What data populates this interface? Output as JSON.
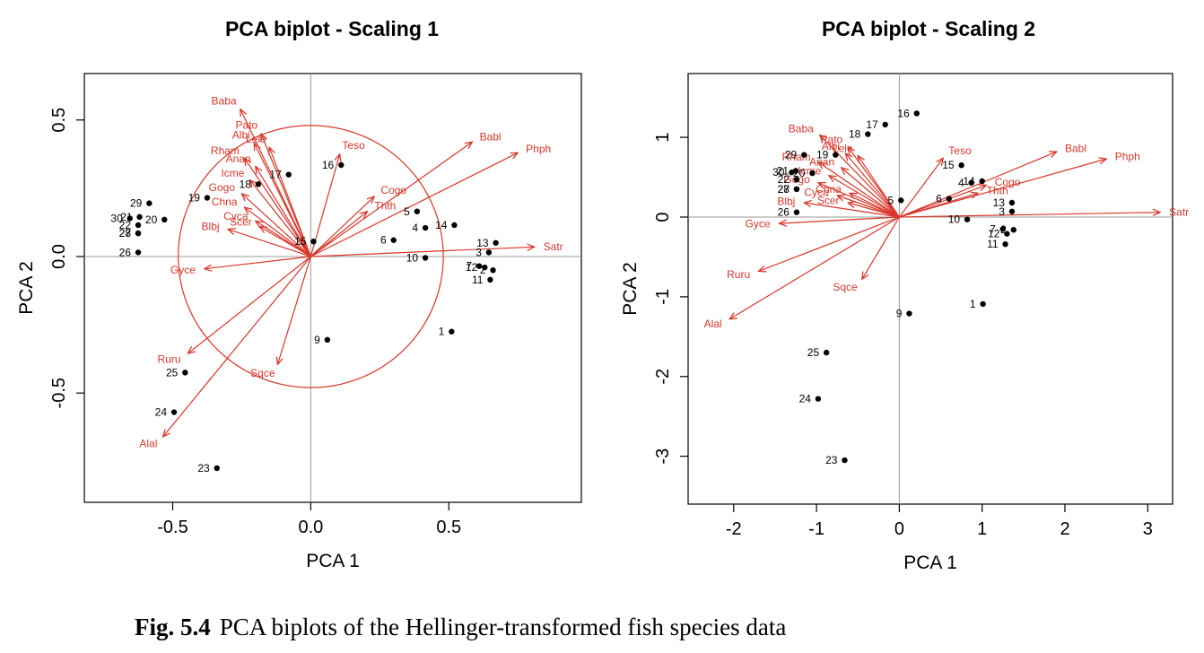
{
  "caption": {
    "label": "Fig. 5.4",
    "text": "PCA biplots of the Hellinger-transformed fish species data"
  },
  "colors": {
    "species": "#d7372a",
    "sites": "#000000",
    "axes": "#999999"
  },
  "chart_data": [
    {
      "type": "scatter",
      "subtype": "biplot",
      "title": "PCA biplot - Scaling 1",
      "xlabel": "PCA  1",
      "ylabel": "PCA  2",
      "xlim": [
        -0.82,
        0.98
      ],
      "ylim": [
        -0.9,
        0.67
      ],
      "xticks": [
        "-0.5",
        "0.0",
        "0.5"
      ],
      "yticks": [
        "-0.5",
        "0.0",
        "0.5"
      ],
      "equilibrium_circle_radius": 0.48,
      "sites": [
        {
          "label": "1",
          "x": 0.51,
          "y": -0.275
        },
        {
          "label": "2",
          "x": 0.66,
          "y": -0.05
        },
        {
          "label": "3",
          "x": 0.645,
          "y": 0.015
        },
        {
          "label": "4",
          "x": 0.415,
          "y": 0.105
        },
        {
          "label": "5",
          "x": 0.385,
          "y": 0.165
        },
        {
          "label": "6",
          "x": 0.3,
          "y": 0.06
        },
        {
          "label": "7",
          "x": 0.61,
          "y": -0.035
        },
        {
          "label": "9",
          "x": 0.06,
          "y": -0.305
        },
        {
          "label": "10",
          "x": 0.415,
          "y": -0.005
        },
        {
          "label": "11",
          "x": 0.65,
          "y": -0.085
        },
        {
          "label": "12",
          "x": 0.63,
          "y": -0.04
        },
        {
          "label": "13",
          "x": 0.67,
          "y": 0.05
        },
        {
          "label": "14",
          "x": 0.52,
          "y": 0.115
        },
        {
          "label": "15",
          "x": 0.01,
          "y": 0.055
        },
        {
          "label": "16",
          "x": 0.11,
          "y": 0.335
        },
        {
          "label": "17",
          "x": -0.08,
          "y": 0.3
        },
        {
          "label": "18",
          "x": -0.19,
          "y": 0.265
        },
        {
          "label": "19",
          "x": -0.375,
          "y": 0.215
        },
        {
          "label": "20",
          "x": -0.53,
          "y": 0.135
        },
        {
          "label": "21",
          "x": -0.62,
          "y": 0.145
        },
        {
          "label": "22",
          "x": -0.625,
          "y": 0.115
        },
        {
          "label": "23",
          "x": -0.34,
          "y": -0.775
        },
        {
          "label": "24",
          "x": -0.495,
          "y": -0.57
        },
        {
          "label": "25",
          "x": -0.455,
          "y": -0.425
        },
        {
          "label": "26",
          "x": -0.625,
          "y": 0.015
        },
        {
          "label": "27",
          "x": -0.625,
          "y": 0.085
        },
        {
          "label": "28",
          "x": -0.625,
          "y": 0.085
        },
        {
          "label": "29",
          "x": -0.585,
          "y": 0.195
        },
        {
          "label": "30",
          "x": -0.655,
          "y": 0.14
        }
      ],
      "species": [
        {
          "label": "Satr",
          "x": 0.81,
          "y": 0.035
        },
        {
          "label": "Phph",
          "x": 0.75,
          "y": 0.38
        },
        {
          "label": "Babl",
          "x": 0.585,
          "y": 0.42
        },
        {
          "label": "Teso",
          "x": 0.105,
          "y": 0.375
        },
        {
          "label": "Cogo",
          "x": 0.23,
          "y": 0.22
        },
        {
          "label": "Thth",
          "x": 0.205,
          "y": 0.165
        },
        {
          "label": "Baba",
          "x": -0.255,
          "y": 0.54
        },
        {
          "label": "Pato",
          "x": -0.18,
          "y": 0.45
        },
        {
          "label": "Lele",
          "x": -0.15,
          "y": 0.4
        },
        {
          "label": "Albi",
          "x": -0.205,
          "y": 0.415
        },
        {
          "label": "Rham",
          "x": -0.24,
          "y": 0.36
        },
        {
          "label": "Anan",
          "x": -0.2,
          "y": 0.33
        },
        {
          "label": "Icme",
          "x": -0.22,
          "y": 0.28
        },
        {
          "label": "Gogo",
          "x": -0.25,
          "y": 0.23
        },
        {
          "label": "Chna",
          "x": -0.24,
          "y": 0.18
        },
        {
          "label": "Cyca",
          "x": -0.2,
          "y": 0.13
        },
        {
          "label": "Scer",
          "x": -0.185,
          "y": 0.11
        },
        {
          "label": "Blbj",
          "x": -0.3,
          "y": 0.1
        },
        {
          "label": "Gyce",
          "x": -0.385,
          "y": -0.045
        },
        {
          "label": "Ruru",
          "x": -0.445,
          "y": -0.355
        },
        {
          "label": "Alal",
          "x": -0.535,
          "y": -0.66
        },
        {
          "label": "Sqce",
          "x": -0.12,
          "y": -0.395
        }
      ]
    },
    {
      "type": "scatter",
      "subtype": "biplot",
      "title": "PCA biplot - Scaling 2",
      "xlabel": "PCA  1",
      "ylabel": "PCA  2",
      "xlim": [
        -2.55,
        3.3
      ],
      "ylim": [
        -3.6,
        1.8
      ],
      "xticks": [
        "-2",
        "-1",
        "0",
        "1",
        "2",
        "3"
      ],
      "yticks": [
        "-3",
        "-2",
        "-1",
        "0",
        "1"
      ],
      "sites": [
        {
          "label": "1",
          "x": 1.01,
          "y": -1.09
        },
        {
          "label": "2",
          "x": 1.38,
          "y": -0.16
        },
        {
          "label": "3",
          "x": 1.36,
          "y": 0.07
        },
        {
          "label": "4",
          "x": 0.87,
          "y": 0.43
        },
        {
          "label": "5",
          "x": 0.02,
          "y": 0.21
        },
        {
          "label": "6",
          "x": 0.6,
          "y": 0.23
        },
        {
          "label": "7",
          "x": 1.25,
          "y": -0.15
        },
        {
          "label": "9",
          "x": 0.12,
          "y": -1.21
        },
        {
          "label": "10",
          "x": 0.82,
          "y": -0.03
        },
        {
          "label": "11",
          "x": 1.28,
          "y": -0.34
        },
        {
          "label": "12",
          "x": 1.3,
          "y": -0.21
        },
        {
          "label": "13",
          "x": 1.36,
          "y": 0.18
        },
        {
          "label": "14",
          "x": 1.0,
          "y": 0.45
        },
        {
          "label": "15",
          "x": 0.75,
          "y": 0.65
        },
        {
          "label": "16",
          "x": 0.21,
          "y": 1.3
        },
        {
          "label": "17",
          "x": -0.17,
          "y": 1.16
        },
        {
          "label": "18",
          "x": -0.38,
          "y": 1.04
        },
        {
          "label": "19",
          "x": -0.77,
          "y": 0.78
        },
        {
          "label": "20",
          "x": -1.05,
          "y": 0.55
        },
        {
          "label": "21",
          "x": -1.25,
          "y": 0.58
        },
        {
          "label": "22",
          "x": -1.24,
          "y": 0.47
        },
        {
          "label": "23",
          "x": -0.66,
          "y": -3.05
        },
        {
          "label": "24",
          "x": -0.98,
          "y": -2.28
        },
        {
          "label": "25",
          "x": -0.88,
          "y": -1.7
        },
        {
          "label": "26",
          "x": -1.24,
          "y": 0.06
        },
        {
          "label": "27",
          "x": -1.24,
          "y": 0.35
        },
        {
          "label": "28",
          "x": -1.24,
          "y": 0.35
        },
        {
          "label": "29",
          "x": -1.15,
          "y": 0.78
        },
        {
          "label": "30",
          "x": -1.3,
          "y": 0.56
        }
      ],
      "species": [
        {
          "label": "Satr",
          "x": 3.15,
          "y": 0.06
        },
        {
          "label": "Phph",
          "x": 2.5,
          "y": 0.73
        },
        {
          "label": "Babl",
          "x": 1.9,
          "y": 0.82
        },
        {
          "label": "Teso",
          "x": 0.53,
          "y": 0.74
        },
        {
          "label": "Cogo",
          "x": 1.05,
          "y": 0.4
        },
        {
          "label": "Thth",
          "x": 0.95,
          "y": 0.3
        },
        {
          "label": "Baba",
          "x": -0.96,
          "y": 1.03
        },
        {
          "label": "Pato",
          "x": -0.62,
          "y": 0.88
        },
        {
          "label": "Lele",
          "x": -0.5,
          "y": 0.77
        },
        {
          "label": "Albi",
          "x": -0.65,
          "y": 0.8
        },
        {
          "label": "Rham",
          "x": -0.98,
          "y": 0.69
        },
        {
          "label": "Anan",
          "x": -0.7,
          "y": 0.62
        },
        {
          "label": "Icme",
          "x": -0.85,
          "y": 0.52
        },
        {
          "label": "Gogo",
          "x": -0.98,
          "y": 0.43
        },
        {
          "label": "Chna",
          "x": -0.6,
          "y": 0.3
        },
        {
          "label": "Cyca",
          "x": -0.75,
          "y": 0.27
        },
        {
          "label": "Scer",
          "x": -0.62,
          "y": 0.18
        },
        {
          "label": "Blbj",
          "x": -1.15,
          "y": 0.18
        },
        {
          "label": "Gyce",
          "x": -1.45,
          "y": -0.08
        },
        {
          "label": "Ruru",
          "x": -1.7,
          "y": -0.68
        },
        {
          "label": "Alal",
          "x": -2.05,
          "y": -1.28
        },
        {
          "label": "Sqce",
          "x": -0.45,
          "y": -0.78
        }
      ]
    }
  ]
}
